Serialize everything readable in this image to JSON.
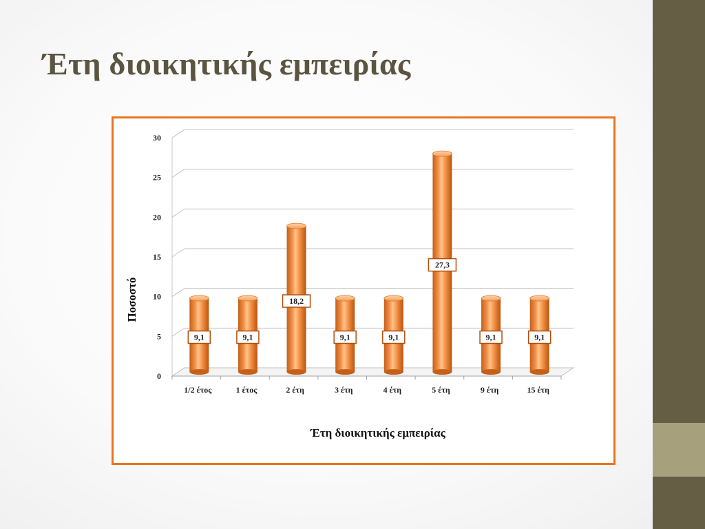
{
  "slide": {
    "title": "Έτη διοικητικής εμπειρίας"
  },
  "colors": {
    "bar": "#f08a3c",
    "bar_dark": "#c4601a",
    "bar_light": "#ffc48f",
    "frame": "#e8741c",
    "side_band": "#665d45",
    "side_accent": "#a6a17c",
    "title": "#5b5440"
  },
  "chart_data": {
    "type": "bar",
    "style": "3d-cylinder",
    "xlabel": "Έτη διοικητικής εμπειρίας",
    "ylabel": "Ποσοστό",
    "categories": [
      "1/2 έτος",
      "1 έτος",
      "2 έτη",
      "3 έτη",
      "4 έτη",
      "5 έτη",
      "9 έτη",
      "15 έτη"
    ],
    "values": [
      9.1,
      9.1,
      18.2,
      9.1,
      9.1,
      27.3,
      9.1,
      9.1
    ],
    "data_labels": [
      "9,1",
      "9,1",
      "18,2",
      "9,1",
      "9,1",
      "27,3",
      "9,1",
      "9,1"
    ],
    "ylim": [
      0,
      30
    ],
    "yticks": [
      0,
      5,
      10,
      15,
      20,
      25,
      30
    ],
    "grid": true,
    "legend": "none"
  }
}
